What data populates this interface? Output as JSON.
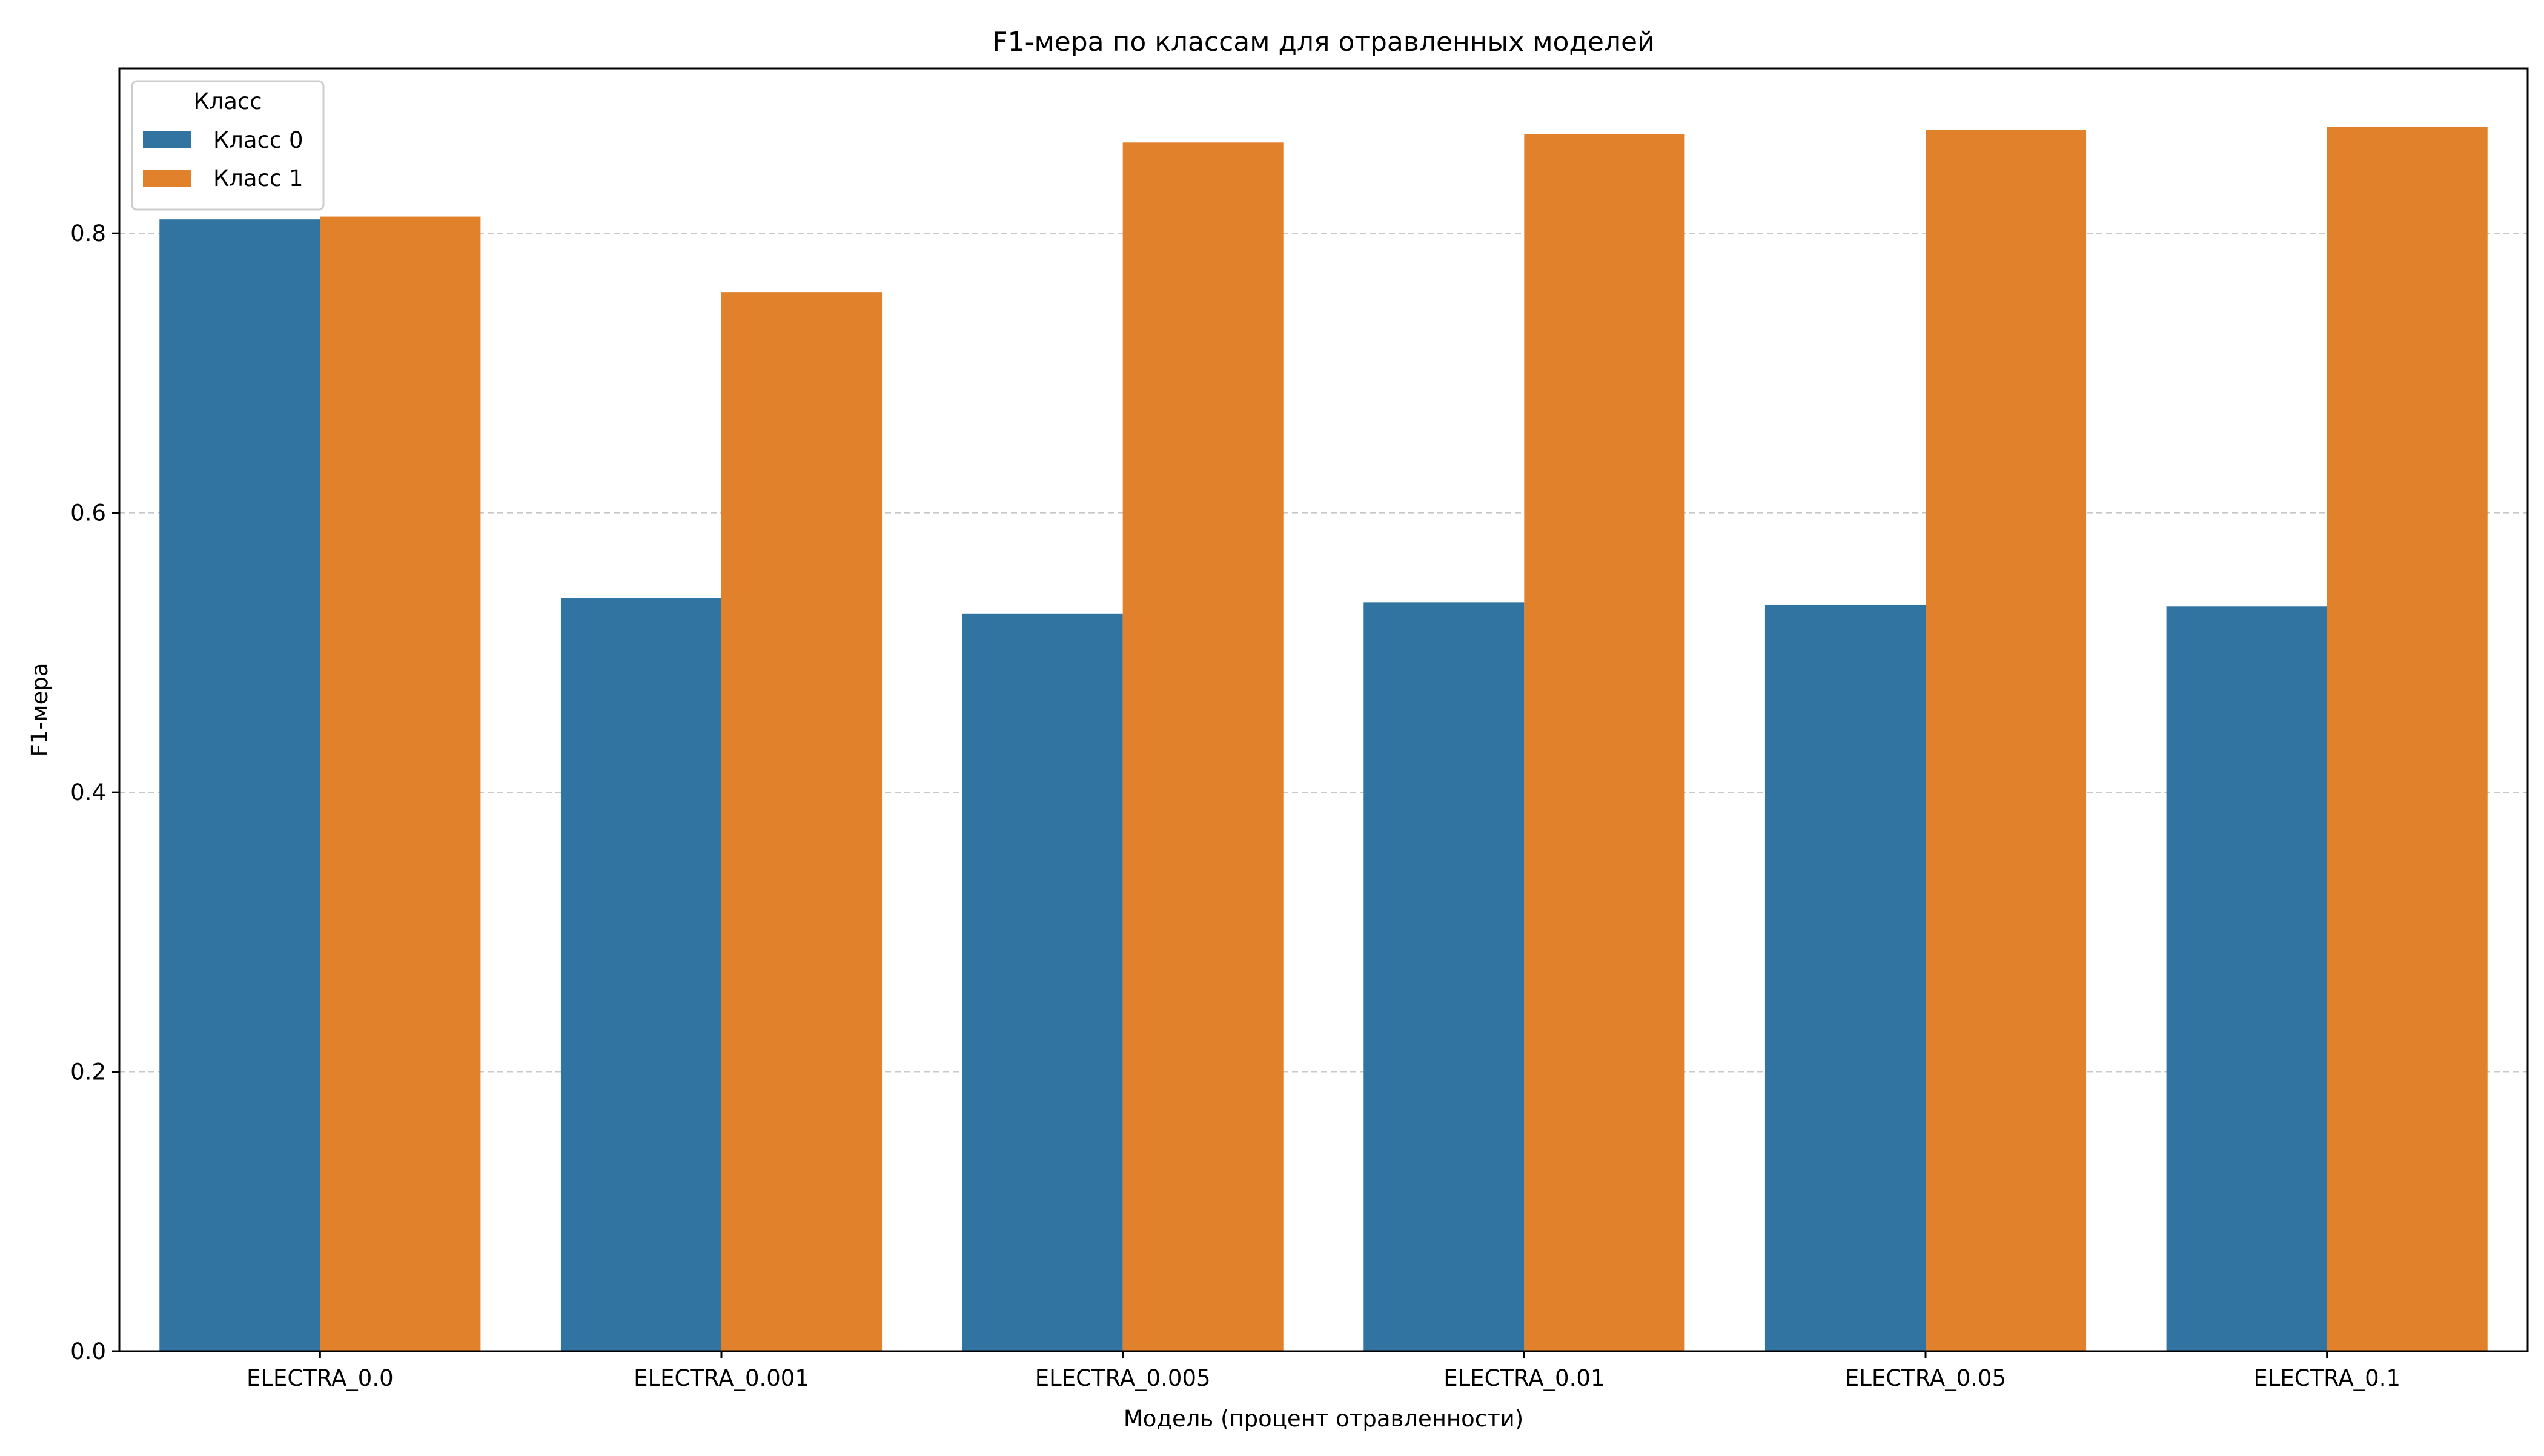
{
  "chart_data": {
    "type": "bar",
    "title": "F1-мера по классам для отравленных моделей",
    "xlabel": "Модель (процент отравленности)",
    "ylabel": "F1-мера",
    "categories": [
      "ELECTRA_0.0",
      "ELECTRA_0.001",
      "ELECTRA_0.005",
      "ELECTRA_0.01",
      "ELECTRA_0.05",
      "ELECTRA_0.1"
    ],
    "series": [
      {
        "name": "Класс 0",
        "color": "#3274a1",
        "values": [
          0.81,
          0.539,
          0.528,
          0.536,
          0.534,
          0.533
        ]
      },
      {
        "name": "Класс 1",
        "color": "#e1812c",
        "values": [
          0.812,
          0.758,
          0.865,
          0.871,
          0.874,
          0.876
        ]
      }
    ],
    "ylim": [
      0,
      0.918
    ],
    "yticks": [
      0.0,
      0.2,
      0.4,
      0.6,
      0.8
    ],
    "ytick_labels": [
      "0.0",
      "0.2",
      "0.4",
      "0.6",
      "0.8"
    ],
    "grid": "horizontal dashed",
    "legend": {
      "title": "Класс",
      "placement": "top-left"
    }
  }
}
